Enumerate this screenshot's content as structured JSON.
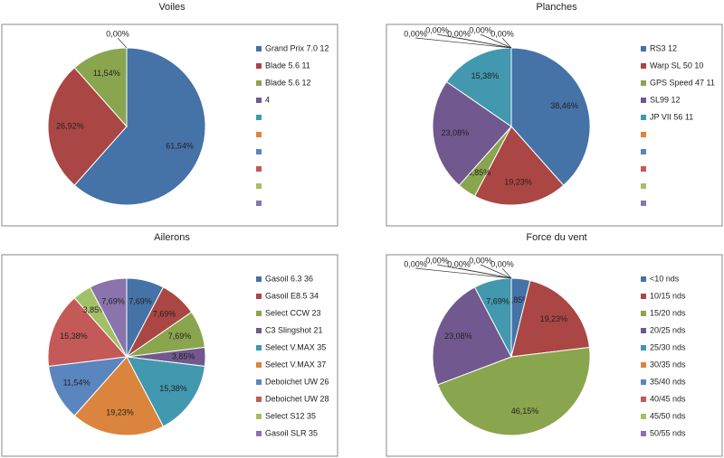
{
  "chart_data": [
    {
      "type": "pie",
      "title": "Voiles",
      "legend": "right",
      "categories": [
        "Grand Prix 7.0 12",
        "Blade 5.6 11",
        "Blade 5.6 12",
        "4",
        null,
        null,
        null,
        null,
        null,
        null
      ],
      "values": [
        61.54,
        26.92,
        11.54,
        0,
        null,
        null,
        null,
        null,
        null,
        null
      ],
      "value_labels": [
        "61,54%",
        "26,92%",
        "11,54%",
        "0,00%",
        null,
        null,
        null,
        null,
        null,
        null
      ],
      "colors": [
        "#4572A7",
        "#AA4643",
        "#89A54E",
        "#71588F",
        "#4198AF",
        "#DB843D",
        "#5B85BF",
        "#C45A57",
        "#A2C065",
        "#8B73AC"
      ]
    },
    {
      "type": "pie",
      "title": "Planches",
      "legend": "right",
      "categories": [
        "RS3 12",
        "Warp SL 50 10",
        "GPS Speed 47 11",
        "SL99 12",
        "JP VII 56 11",
        null,
        null,
        null,
        null,
        null
      ],
      "values": [
        38.46,
        19.23,
        3.85,
        23.08,
        15.38,
        0,
        0,
        0,
        0,
        0
      ],
      "value_labels": [
        "38,46%",
        "19,23%",
        "3,85%",
        "23,08%",
        "15,38%",
        "0,00%",
        "0,00%",
        "0,00%",
        "0,00%",
        "0,00%"
      ],
      "colors": [
        "#4572A7",
        "#AA4643",
        "#89A54E",
        "#71588F",
        "#4198AF",
        "#DB843D",
        "#5B85BF",
        "#C45A57",
        "#A2C065",
        "#8B73AC"
      ]
    },
    {
      "type": "pie",
      "title": "Ailerons",
      "legend": "right",
      "categories": [
        "Gasoil 6.3 36",
        "Gasoil E8.5 34",
        "Select CCW 23",
        "C3 Slingshot 21",
        "Select V.MAX 35",
        "Select V.MAX 37",
        "Deboichet UW 26",
        "Deboichet UW 28",
        "Select S12 35",
        "Gasoil SLR 35"
      ],
      "values": [
        7.69,
        7.69,
        7.69,
        3.85,
        15.38,
        19.23,
        11.54,
        15.38,
        3.85,
        7.69
      ],
      "value_labels": [
        "7,69%",
        "7,69%",
        "7,69%",
        "3,85%",
        "15,38%",
        "19,23%",
        "11,54%",
        "15,38%",
        "3,85%",
        "7,69%"
      ],
      "colors": [
        "#4572A7",
        "#AA4643",
        "#89A54E",
        "#71588F",
        "#4198AF",
        "#DB843D",
        "#5B85BF",
        "#C45A57",
        "#A2C065",
        "#8B73AC"
      ]
    },
    {
      "type": "pie",
      "title": "Force du vent",
      "legend": "right",
      "categories": [
        "<10 nds",
        "10/15 nds",
        "15/20 nds",
        "20/25 nds",
        "25/30 nds",
        "30/35 nds",
        "35/40 nds",
        "40/45 nds",
        "45/50 nds",
        "50/55 nds"
      ],
      "values": [
        3.85,
        19.23,
        46.15,
        23.08,
        7.69,
        0,
        0,
        0,
        0,
        0
      ],
      "value_labels": [
        "3,85%",
        "19,23%",
        "46,15%",
        "23,08%",
        "7,69%",
        "0,00%",
        "0,00%",
        "0,00%",
        "0,00%",
        "0,00%"
      ],
      "colors": [
        "#4572A7",
        "#AA4643",
        "#89A54E",
        "#71588F",
        "#4198AF",
        "#DB843D",
        "#5B85BF",
        "#C45A57",
        "#A2C065",
        "#8B73AC"
      ]
    }
  ]
}
